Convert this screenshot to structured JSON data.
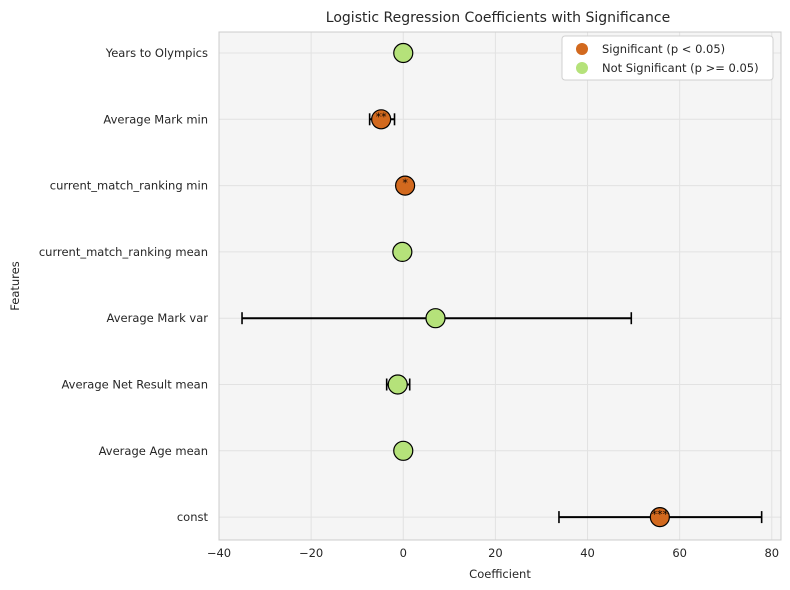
{
  "chart_data": {
    "type": "scatter",
    "title": "Logistic Regression Coefficients with Significance",
    "xlabel": "Coefficient",
    "ylabel": "Features",
    "xlim": [
      -40,
      82
    ],
    "xticks": [
      -40,
      -20,
      0,
      20,
      40,
      60,
      80
    ],
    "xtick_labels": [
      "−40",
      "−20",
      "0",
      "20",
      "40",
      "60",
      "80"
    ],
    "grid": true,
    "legend_position": "top-right",
    "colors": {
      "significant": "#d2691e",
      "not_significant": "#b5e27a",
      "background": "#f5f5f5",
      "grid": "#e2e2e2"
    },
    "legend": [
      {
        "label": "Significant (p < 0.05)",
        "key": "significant"
      },
      {
        "label": "Not Significant (p >= 0.05)",
        "key": "not_significant"
      }
    ],
    "features": [
      {
        "name": "Years to Olympics",
        "coef": 0.0,
        "err_low": null,
        "err_high": null,
        "significant": false,
        "stars": ""
      },
      {
        "name": "Average Mark min",
        "coef": -4.8,
        "err_low": -7.3,
        "err_high": -1.9,
        "significant": true,
        "stars": "**"
      },
      {
        "name": "current_match_ranking min",
        "coef": 0.4,
        "err_low": null,
        "err_high": null,
        "significant": true,
        "stars": "*"
      },
      {
        "name": "current_match_ranking mean",
        "coef": -0.2,
        "err_low": null,
        "err_high": null,
        "significant": false,
        "stars": ""
      },
      {
        "name": "Average Mark var",
        "coef": 7.0,
        "err_low": -35.0,
        "err_high": 49.5,
        "significant": false,
        "stars": ""
      },
      {
        "name": "Average Net Result mean",
        "coef": -1.2,
        "err_low": -3.6,
        "err_high": 1.4,
        "significant": false,
        "stars": ""
      },
      {
        "name": "Average Age mean",
        "coef": 0.0,
        "err_low": null,
        "err_high": null,
        "significant": false,
        "stars": ""
      },
      {
        "name": "const",
        "coef": 55.7,
        "err_low": 33.8,
        "err_high": 77.8,
        "significant": true,
        "stars": "***"
      }
    ]
  }
}
